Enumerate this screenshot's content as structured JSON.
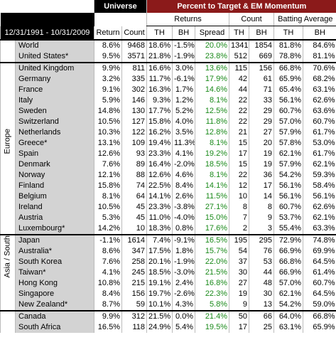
{
  "header": {
    "universe": "Universe",
    "target": "Percent to Target & EM Momentum",
    "returns": "Returns",
    "count": "Count",
    "batting": "Batting Average",
    "period": "12/31/1991 - 10/31/2009",
    "columns": [
      "Return",
      "Count",
      "TH",
      "BH",
      "Spread",
      "TH",
      "BH",
      "TH",
      "BH"
    ]
  },
  "sections": [
    {
      "rows": [
        [
          "World",
          "8.6%",
          "9468",
          "18.6%",
          "-1.5%",
          "20.0%",
          "1341",
          "1854",
          "81.8%",
          "84.6%"
        ],
        [
          "United States*",
          "9.5%",
          "3571",
          "21.8%",
          "-1.9%",
          "23.8%",
          "512",
          "669",
          "78.8%",
          "81.1%"
        ]
      ]
    },
    {
      "label": "Europe",
      "rows": [
        [
          "United Kingdom",
          "9.9%",
          "811",
          "16.6%",
          "3.0%",
          "13.6%",
          "115",
          "156",
          "66.8%",
          "70.6%"
        ],
        [
          "Germany",
          "3.2%",
          "335",
          "11.7%",
          "-6.1%",
          "17.9%",
          "42",
          "61",
          "65.9%",
          "68.2%"
        ],
        [
          "France",
          "9.1%",
          "302",
          "16.3%",
          "1.7%",
          "14.6%",
          "44",
          "71",
          "65.4%",
          "63.1%"
        ],
        [
          "Italy",
          "5.9%",
          "146",
          "9.3%",
          "1.2%",
          "8.1%",
          "22",
          "33",
          "56.1%",
          "62.6%"
        ],
        [
          "Sweden",
          "14.8%",
          "130",
          "17.7%",
          "5.2%",
          "12.5%",
          "22",
          "29",
          "60.7%",
          "63.6%"
        ],
        [
          "Switzerland",
          "10.5%",
          "127",
          "15.8%",
          "4.0%",
          "11.8%",
          "22",
          "29",
          "57.0%",
          "60.7%"
        ],
        [
          "Netherlands",
          "10.3%",
          "122",
          "16.2%",
          "3.5%",
          "12.8%",
          "21",
          "27",
          "57.9%",
          "61.7%"
        ],
        [
          "Greece*",
          "13.1%",
          "109",
          "19.4%",
          "11.3%",
          "8.1%",
          "15",
          "20",
          "57.8%",
          "53.0%"
        ],
        [
          "Spain",
          "12.6%",
          "93",
          "23.3%",
          "4.1%",
          "19.2%",
          "17",
          "19",
          "62.1%",
          "61.7%"
        ],
        [
          "Denmark",
          "7.6%",
          "89",
          "16.4%",
          "-2.0%",
          "18.5%",
          "15",
          "19",
          "57.9%",
          "62.1%"
        ],
        [
          "Norway",
          "12.1%",
          "88",
          "12.6%",
          "4.6%",
          "8.1%",
          "22",
          "36",
          "54.2%",
          "59.3%"
        ],
        [
          "Finland",
          "15.8%",
          "74",
          "22.5%",
          "8.4%",
          "14.1%",
          "12",
          "17",
          "56.1%",
          "58.4%"
        ],
        [
          "Belgium",
          "8.1%",
          "64",
          "14.1%",
          "2.6%",
          "11.5%",
          "10",
          "14",
          "56.1%",
          "56.1%"
        ],
        [
          "Ireland",
          "10.5%",
          "45",
          "23.3%",
          "-3.8%",
          "27.1%",
          "8",
          "8",
          "60.7%",
          "62.6%"
        ],
        [
          "Austria",
          "5.3%",
          "45",
          "11.0%",
          "-4.0%",
          "15.0%",
          "7",
          "9",
          "53.7%",
          "62.1%"
        ],
        [
          "Luxembourg*",
          "14.2%",
          "10",
          "18.3%",
          "0.8%",
          "17.6%",
          "2",
          "3",
          "55.4%",
          "63.3%"
        ]
      ]
    },
    {
      "label": "Asia / South Pacific",
      "rows": [
        [
          "Japan",
          "-1.1%",
          "1614",
          "7.4%",
          "-9.1%",
          "16.5%",
          "195",
          "295",
          "72.9%",
          "74.8%"
        ],
        [
          "Australia*",
          "8.6%",
          "347",
          "17.5%",
          "1.8%",
          "15.7%",
          "54",
          "76",
          "66.9%",
          "69.9%"
        ],
        [
          "South Korea",
          "7.6%",
          "258",
          "20.1%",
          "-1.9%",
          "22.0%",
          "37",
          "53",
          "66.8%",
          "64.5%"
        ],
        [
          "Taiwan*",
          "4.1%",
          "245",
          "18.5%",
          "-3.0%",
          "21.5%",
          "30",
          "44",
          "66.9%",
          "61.4%"
        ],
        [
          "Hong Kong",
          "10.8%",
          "215",
          "19.1%",
          "2.4%",
          "16.8%",
          "27",
          "48",
          "57.0%",
          "60.7%"
        ],
        [
          "Singapore",
          "8.4%",
          "156",
          "19.7%",
          "-2.6%",
          "22.3%",
          "19",
          "30",
          "62.1%",
          "64.5%"
        ],
        [
          "New Zealand*",
          "8.7%",
          "59",
          "10.1%",
          "4.3%",
          "5.8%",
          "9",
          "13",
          "54.2%",
          "59.0%"
        ]
      ]
    },
    {
      "rows": [
        [
          "Canada",
          "9.9%",
          "312",
          "21.5%",
          "0.0%",
          "21.4%",
          "50",
          "66",
          "64.0%",
          "66.8%"
        ],
        [
          "South Africa",
          "16.5%",
          "118",
          "24.9%",
          "5.4%",
          "19.5%",
          "17",
          "25",
          "63.1%",
          "65.9%"
        ]
      ]
    }
  ]
}
